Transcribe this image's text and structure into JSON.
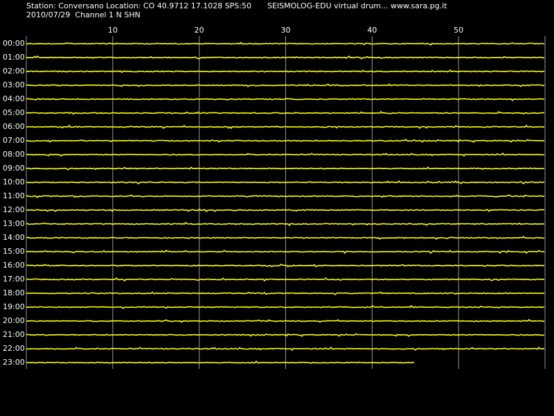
{
  "header": {
    "station": "Station: Conversano Location: CO 40.9712 17.1028 SPS:50",
    "program": "SEISMOLOG-EDU virtual drum... www.sara.pg.it",
    "date_channel": "2010/07/29  Channel 1 N SHN"
  },
  "drum": {
    "xlim": [
      0,
      60
    ],
    "xticks": [
      10,
      20,
      30,
      40,
      50
    ],
    "rows": [
      "00:00",
      "01:00",
      "02:00",
      "03:00",
      "04:00",
      "05:00",
      "06:00",
      "07:00",
      "08:00",
      "09:00",
      "10:00",
      "11:00",
      "12:00",
      "13:00",
      "14:00",
      "15:00",
      "16:00",
      "17:00",
      "18:00",
      "19:00",
      "20:00",
      "21:00",
      "22:00",
      "23:00"
    ],
    "last_row_end": 45
  }
}
